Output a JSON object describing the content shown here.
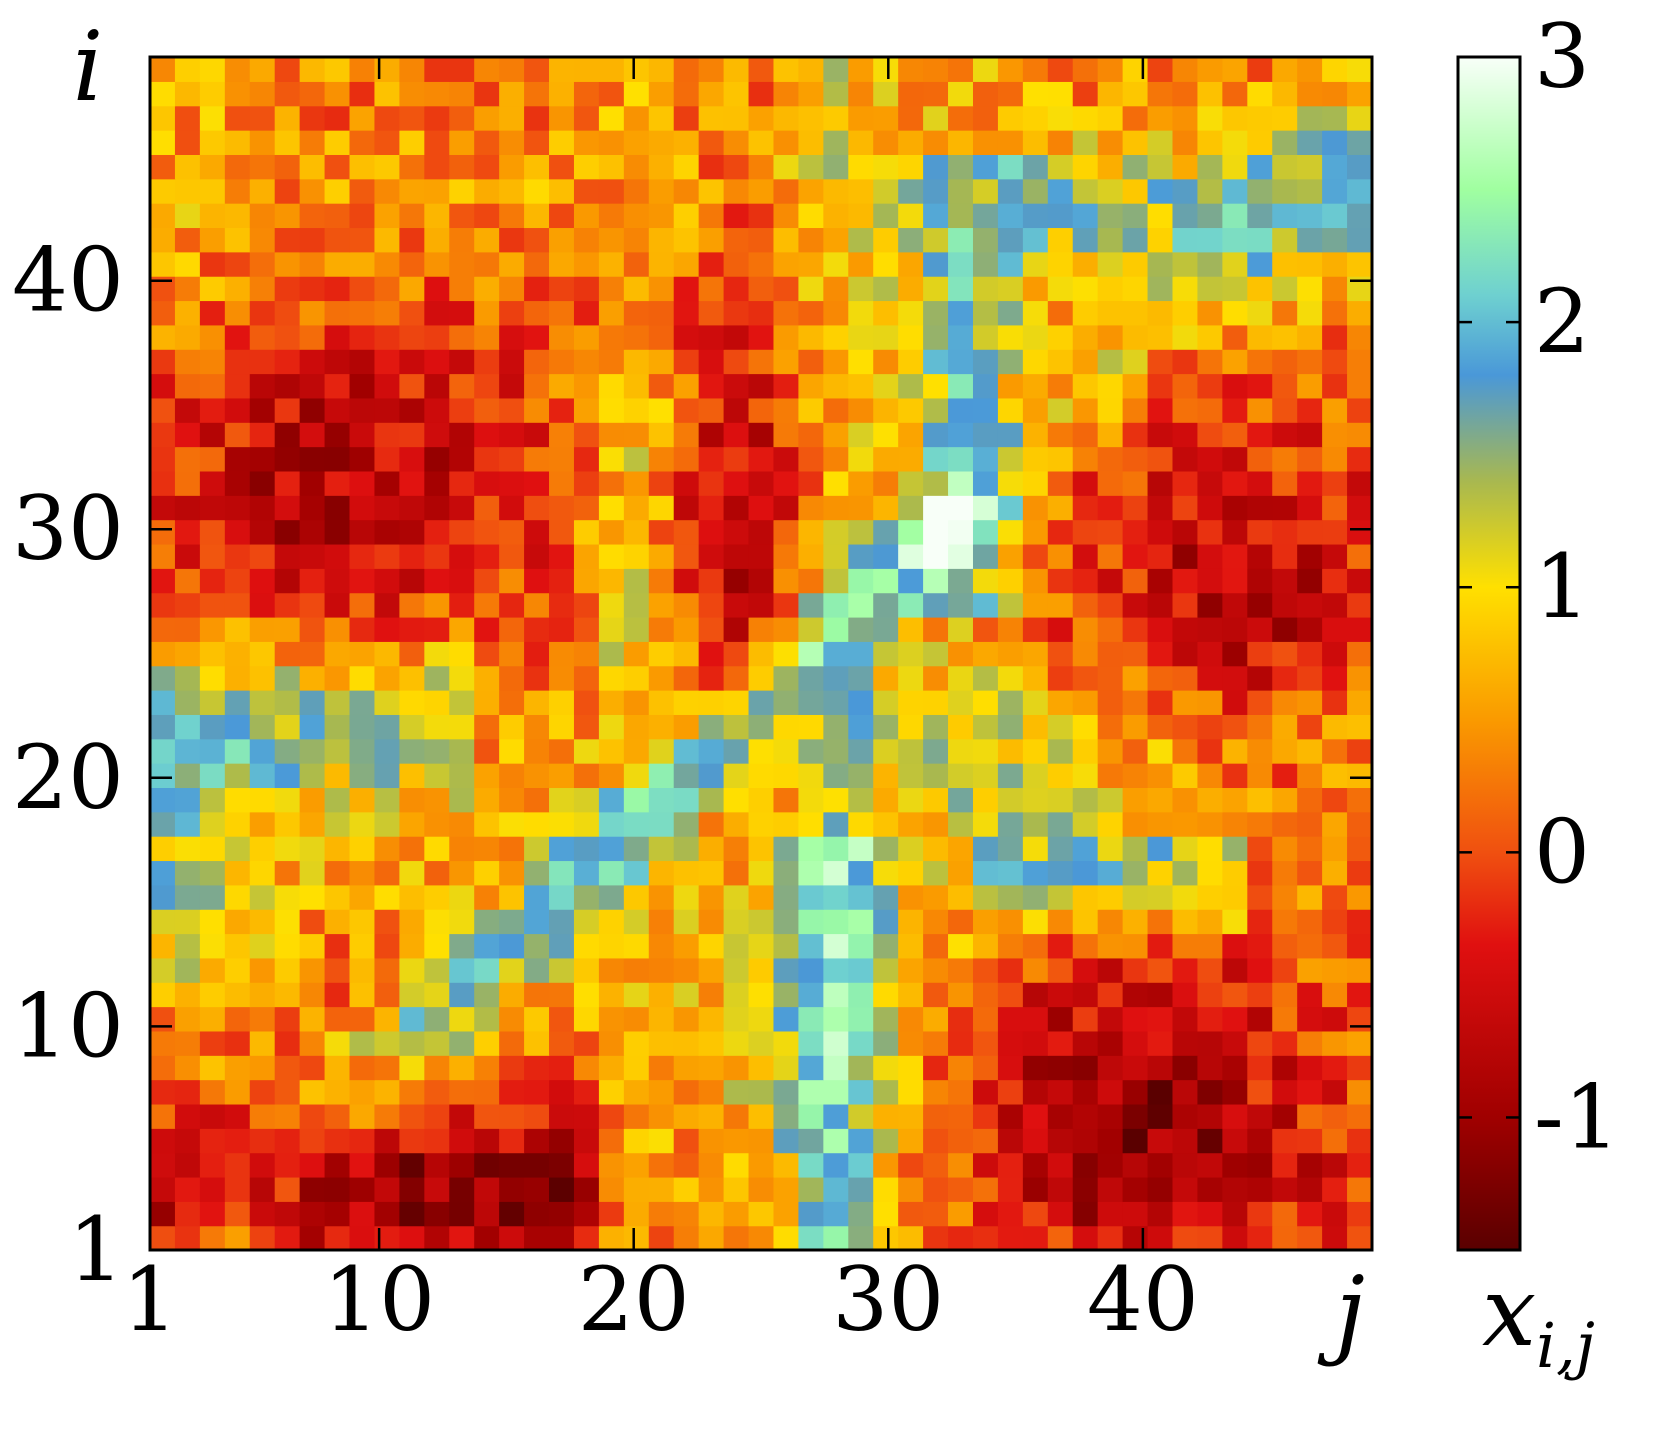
{
  "chart_data": {
    "type": "heatmap",
    "title": "",
    "grid": false,
    "legend": "colorbar-right",
    "x_axis": {
      "label": "j",
      "range": [
        1,
        49
      ],
      "ticks": [
        "1",
        "10",
        "20",
        "30",
        "40"
      ]
    },
    "y_axis": {
      "label": "i",
      "range": [
        1,
        49
      ],
      "ticks": [
        "1",
        "10",
        "20",
        "30",
        "40"
      ]
    },
    "colorbar": {
      "label": "x_{i,j}",
      "label_main": "x",
      "label_sub": "i,j",
      "range": [
        -1.5,
        3
      ],
      "ticks": [
        "-1",
        "0",
        "1",
        "2",
        "3"
      ],
      "stops": [
        {
          "v": -1.5,
          "color": "#5a0000"
        },
        {
          "v": -1.0,
          "color": "#a00000"
        },
        {
          "v": -0.35,
          "color": "#e01010"
        },
        {
          "v": 0.0,
          "color": "#f05010"
        },
        {
          "v": 0.5,
          "color": "#fa9a00"
        },
        {
          "v": 1.0,
          "color": "#ffe000"
        },
        {
          "v": 1.4,
          "color": "#a8b850"
        },
        {
          "v": 1.8,
          "color": "#4a98d8"
        },
        {
          "v": 2.1,
          "color": "#6ed0d0"
        },
        {
          "v": 2.5,
          "color": "#a0ffa0"
        },
        {
          "v": 3.0,
          "color": "#f8fff8"
        }
      ]
    },
    "grid_size": [
      49,
      49
    ],
    "value_description": "x_{i,j} values on a 49x49 grid, approximated: ridge bands near j≈27–30 and i≈j diagonal, low-value regions in lower-left and right side"
  }
}
